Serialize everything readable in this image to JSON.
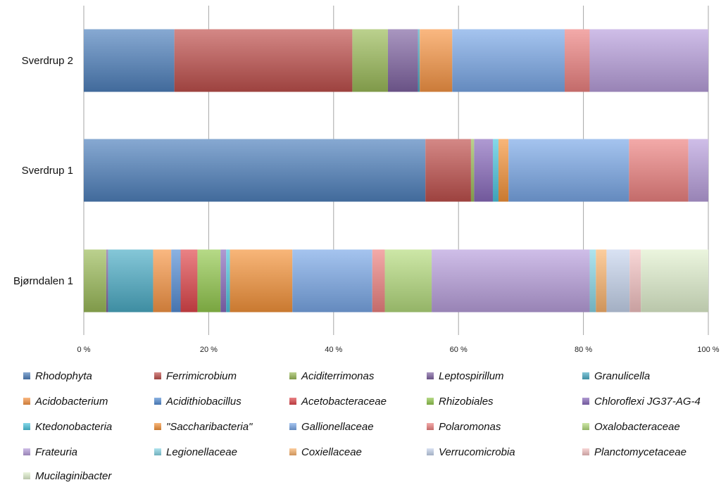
{
  "chart_data": {
    "type": "bar",
    "orientation": "horizontal",
    "stacked": "percent",
    "categories": [
      "Sverdrup 2",
      "Sverdrup 1",
      "Bjørndalen 1"
    ],
    "x_ticks": [
      "0 %",
      "20 %",
      "40 %",
      "60 %",
      "80 %",
      "100 %"
    ],
    "xlim": [
      0,
      100
    ],
    "grid": "vertical",
    "legend_position": "bottom",
    "series": [
      {
        "name": "Rhodophyta",
        "color": "#4f81bd",
        "values": [
          14.5,
          54.7,
          0
        ]
      },
      {
        "name": "Ferrimicrobium",
        "color": "#c0504d",
        "values": [
          28.5,
          7.3,
          0
        ]
      },
      {
        "name": "Aciditerrimonas",
        "color": "#9bbb59",
        "values": [
          5.7,
          0.5,
          3.6
        ]
      },
      {
        "name": "Leptospirillum",
        "color": "#8064a2",
        "values": [
          4.8,
          0,
          0.3
        ]
      },
      {
        "name": "Granulicella",
        "color": "#4bacc6",
        "values": [
          0.3,
          0,
          7.2
        ]
      },
      {
        "name": "Acidobacterium",
        "color": "#f79646",
        "values": [
          5.2,
          0,
          2.9
        ]
      },
      {
        "name": "Acidithiobacillus",
        "color": "#558ed5",
        "values": [
          0,
          0,
          1.5
        ]
      },
      {
        "name": "Acetobacteraceae",
        "color": "#e0474c",
        "values": [
          0,
          0,
          2.7
        ]
      },
      {
        "name": "Rhizobiales",
        "color": "#93c94e",
        "values": [
          0,
          0,
          3.7
        ]
      },
      {
        "name": "Chloroflexi JG37-AG-4",
        "color": "#8a6bbd",
        "values": [
          0,
          3.0,
          0.9
        ]
      },
      {
        "name": "Ktedonobacteria",
        "color": "#4dc6df",
        "values": [
          0,
          0.9,
          0.6
        ]
      },
      {
        "name": "\"Saccharibacteria\"",
        "color": "#f5933a",
        "values": [
          0,
          1.6,
          10.0
        ]
      },
      {
        "name": "Gallionellaceae",
        "color": "#7aa8e8",
        "values": [
          18.0,
          19.3,
          12.8
        ]
      },
      {
        "name": "Polaromonas",
        "color": "#ee8281",
        "values": [
          4.0,
          9.5,
          2.0
        ]
      },
      {
        "name": "Oxalobacteraceae",
        "color": "#b5dc7e",
        "values": [
          0,
          0,
          7.5
        ]
      },
      {
        "name": "Frateuria",
        "color": "#b9a0dd",
        "values": [
          19.0,
          3.2,
          25.3
        ]
      },
      {
        "name": "Legionellaceae",
        "color": "#8ad7e6",
        "values": [
          0,
          0,
          1.0
        ]
      },
      {
        "name": "Coxiellaceae",
        "color": "#fbb56f",
        "values": [
          0,
          0,
          1.7
        ]
      },
      {
        "name": "Verrucomicrobia",
        "color": "#c7d5ee",
        "values": [
          0,
          0,
          3.7
        ]
      },
      {
        "name": "Planctomycetaceae",
        "color": "#f4c3c3",
        "values": [
          0,
          0,
          1.8
        ]
      },
      {
        "name": "Mucilaginibacter",
        "color": "#e1f1cf",
        "values": [
          0,
          0,
          10.8
        ]
      }
    ]
  }
}
